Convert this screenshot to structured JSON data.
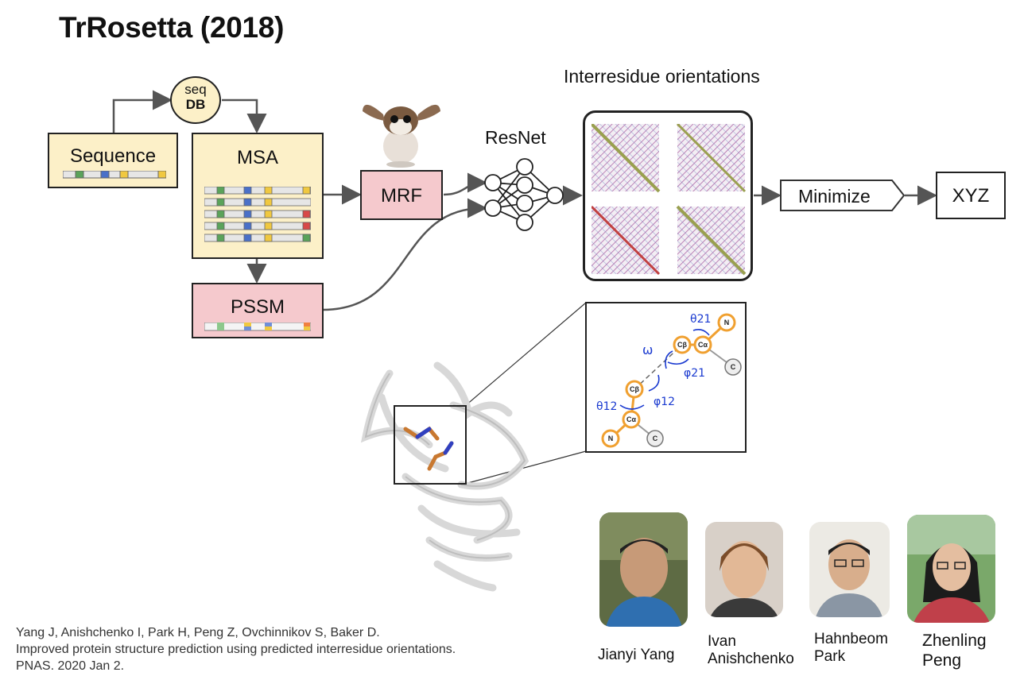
{
  "title": "TrRosetta (2018)",
  "pipeline": {
    "seqdb_line1": "seq",
    "seqdb_line2": "DB",
    "sequence": "Sequence",
    "msa": "MSA",
    "mrf": "MRF",
    "pssm": "PSSM",
    "resnet": "ResNet",
    "orientations_title": "Interresidue orientations",
    "minimize": "Minimize",
    "xyz": "XYZ"
  },
  "geometry_labels": {
    "theta21": "θ21",
    "omega": "ω",
    "phi21": "φ21",
    "theta12": "θ12",
    "phi12": "φ12",
    "cb": "Cβ",
    "ca": "Cα",
    "n": "N",
    "c": "C"
  },
  "citation": {
    "line1": "Yang J, Anishchenko I, Park H, Peng Z, Ovchinnikov S, Baker D.",
    "line2": "Improved protein structure prediction using predicted interresidue orientations.",
    "line3": "PNAS. 2020 Jan 2."
  },
  "people": [
    {
      "name": "Jianyi Yang"
    },
    {
      "name_line1": "Ivan",
      "name_line2": "Anishchenko"
    },
    {
      "name_line1": "Hahnbeom",
      "name_line2": "Park"
    },
    {
      "name_line1": "Zhenling",
      "name_line2": "Peng"
    }
  ],
  "colors": {
    "cream": "#fcf0c8",
    "pink": "#f5c9cd",
    "orange": "#f0a030",
    "blue": "#1a3ad0"
  }
}
